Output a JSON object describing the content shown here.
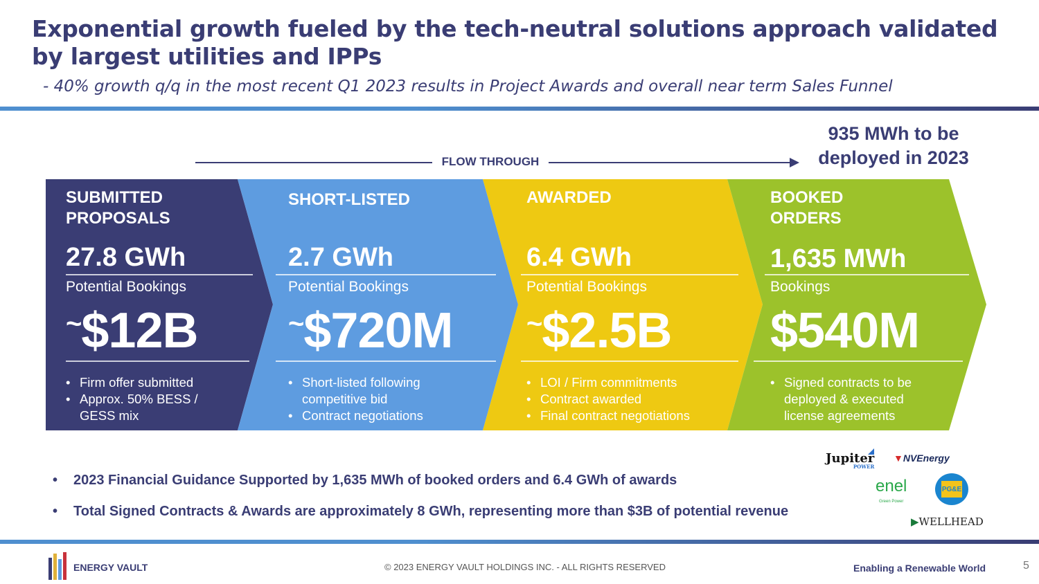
{
  "title": "Exponential growth fueled by the tech-neutral solutions approach validated by largest utilities and IPPs",
  "subtitle": "- 40% growth q/q in the most recent Q1 2023 results in Project Awards and overall near term Sales Funnel",
  "flow_label": "FLOW THROUGH",
  "deploy_callout": "935 MWh to be deployed in 2023",
  "colors": {
    "navy": "#3a3d74",
    "blue": "#5e9ce0",
    "yellow": "#eec912",
    "green": "#9cc22b"
  },
  "stages": [
    {
      "stage": "SUBMITTED PROPOSALS",
      "amount": "27.8 GWh",
      "label": "Potential Bookings",
      "tilde": "~",
      "value": "$12B",
      "bullets": [
        "Firm offer submitted",
        "Approx. 50% BESS / GESS mix"
      ]
    },
    {
      "stage": "SHORT-LISTED",
      "amount": "2.7 GWh",
      "label": "Potential Bookings",
      "tilde": "~",
      "value": "$720M",
      "bullets": [
        "Short-listed following competitive bid",
        "Contract negotiations"
      ]
    },
    {
      "stage": "AWARDED",
      "amount": "6.4 GWh",
      "label": "Potential Bookings",
      "tilde": "~",
      "value": "$2.5B",
      "bullets": [
        "LOI / Firm commitments",
        "Contract awarded",
        "Final contract negotiations"
      ]
    },
    {
      "stage": "BOOKED ORDERS",
      "amount": "1,635 MWh",
      "label": "Bookings",
      "tilde": "",
      "value": "$540M",
      "bullets": [
        "Signed contracts to be deployed & executed license agreements"
      ]
    }
  ],
  "notes": [
    "2023 Financial Guidance Supported by 1,635 MWh of booked orders and 6.4 GWh of awards",
    "Total Signed Contracts & Awards are approximately 8 GWh, representing  more than $3B of potential revenue"
  ],
  "logos": {
    "jupiter": "Jupiter",
    "jupiter_sub": "POWER",
    "nvenergy": "NVEnergy",
    "enel": "enel",
    "enel_sub": "Green Power",
    "pge": "PG&E",
    "wellhead": "WELLHEAD"
  },
  "footer": {
    "brand": "ENERGY VAULT",
    "copyright": "© 2023 ENERGY VAULT HOLDINGS INC. - ALL RIGHTS RESERVED",
    "tagline": "Enabling a Renewable World",
    "page": "5"
  }
}
